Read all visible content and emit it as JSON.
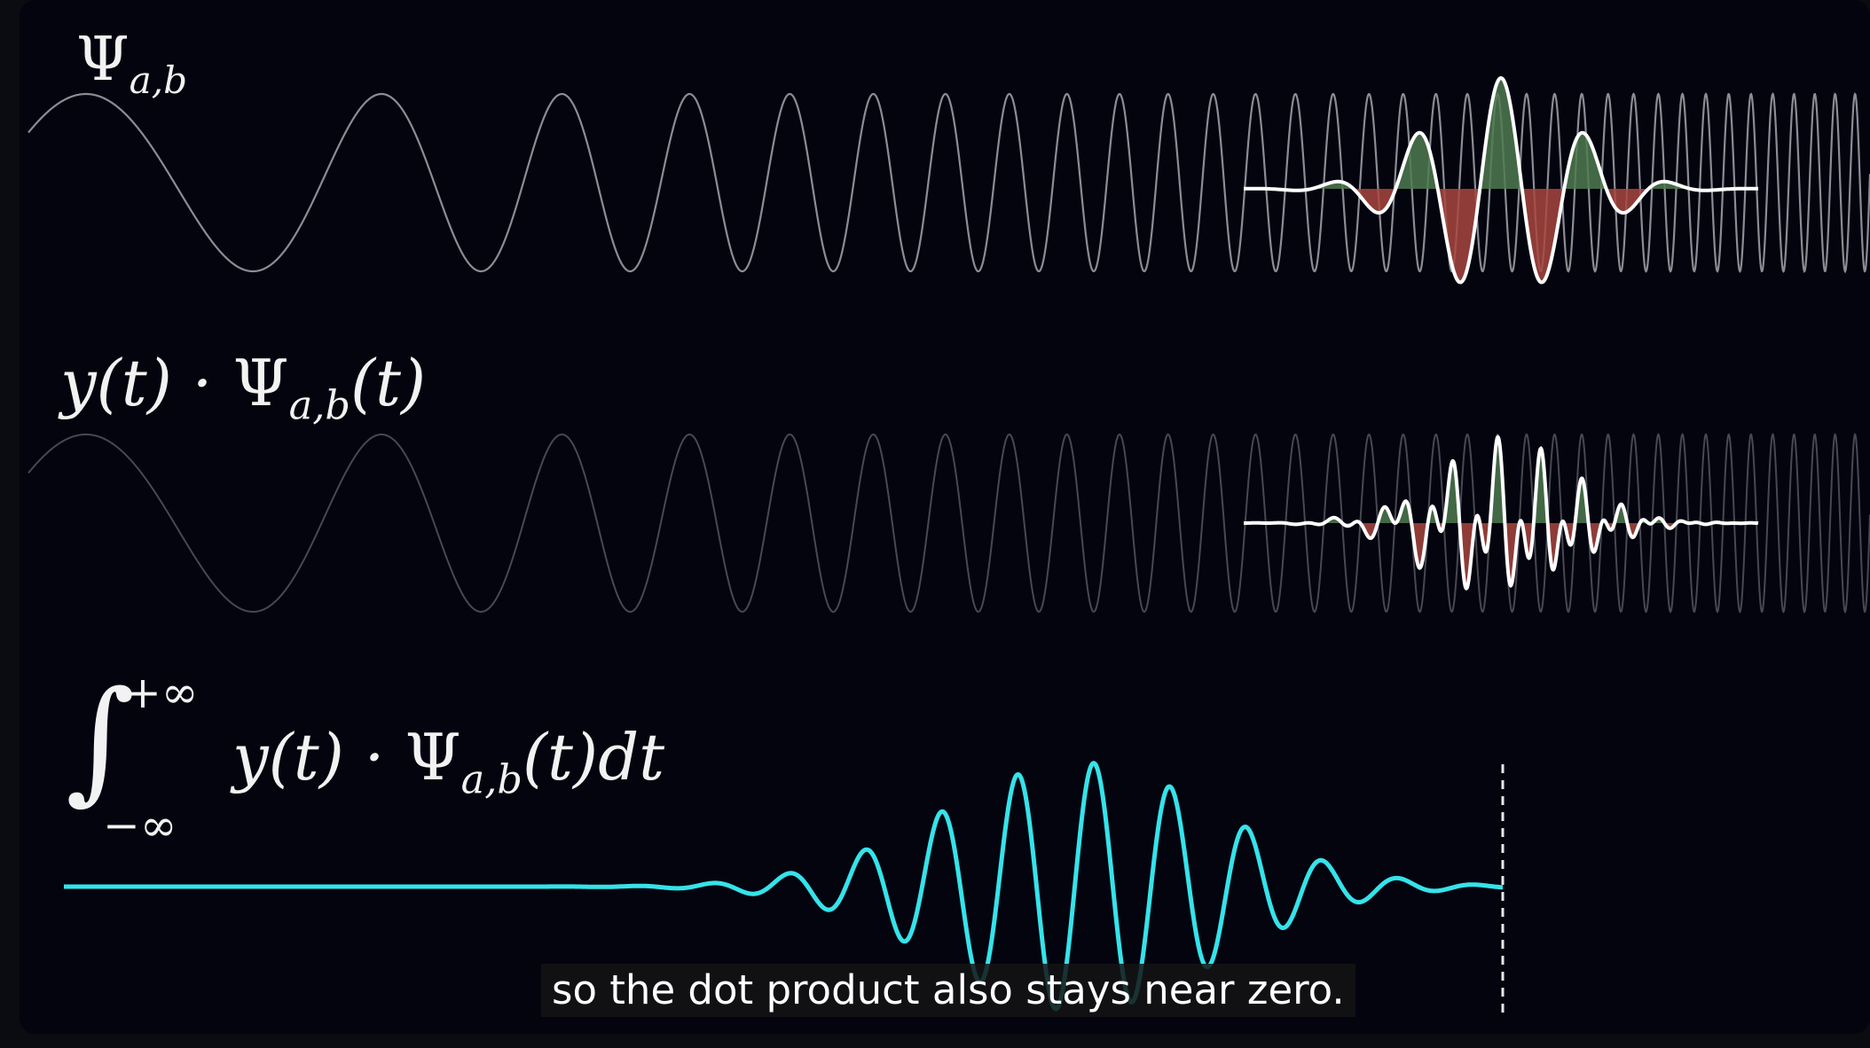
{
  "labels": {
    "wavelet_symbol": "Ψ",
    "wavelet_subscript": "a,b",
    "product_prefix": "y(t) · ",
    "product_psi": "Ψ",
    "product_sub": "a,b",
    "product_suffix": "(t)",
    "integral_prefix": "y(t) · ",
    "integral_psi": "Ψ",
    "integral_sub": "a,b",
    "integral_suffix": "(t)dt",
    "integral_sign": "∫",
    "integral_upper": "+∞",
    "integral_lower": "−∞"
  },
  "caption": "so the dot product also stays near zero.",
  "colors": {
    "background": "#04040f",
    "signal": "#b9b9c2",
    "wavelet": "#ffffff",
    "positive_fill": "#4f7a4f",
    "negative_fill": "#a8473f",
    "result": "#35e3ea",
    "text": "#f2f2f2"
  }
}
